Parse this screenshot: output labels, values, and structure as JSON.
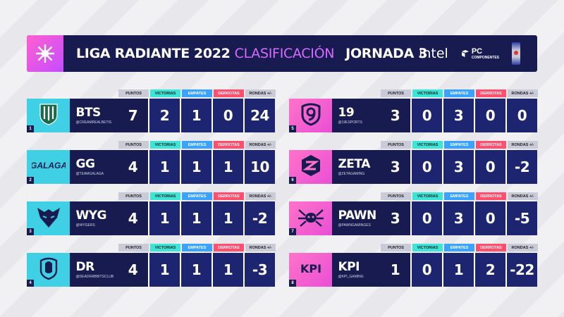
{
  "header": {
    "title_main": "LIGA RADIANTE",
    "year": "2022",
    "subtitle": "CLASIFICACIÓN",
    "jornada": "JORNADA 3",
    "sponsors": {
      "intel": "intel",
      "pc": "PC",
      "pc_sub": "COMPONENTES"
    }
  },
  "columns": {
    "puntos": "PUNTOS",
    "victorias": "VICTORIAS",
    "empates": "EMPATES",
    "derrotas": "DERROTAS",
    "rondas": "RONDAS +/-"
  },
  "teams": [
    {
      "rank": "1",
      "name": "BTS",
      "handle": "@CREAMREALBETIS",
      "puntos": "7",
      "victorias": "2",
      "empates": "1",
      "derrotas": "0",
      "rondas": "24",
      "logo": "real-betis-shield-icon"
    },
    {
      "rank": "2",
      "name": "GG",
      "handle": "@TEAMGALAGA",
      "puntos": "4",
      "victorias": "1",
      "empates": "1",
      "derrotas": "1",
      "rondas": "10",
      "logo": "galaga-logo-icon"
    },
    {
      "rank": "3",
      "name": "WYG",
      "handle": "@WYGERS",
      "puntos": "4",
      "victorias": "1",
      "empates": "1",
      "derrotas": "1",
      "rondas": "-2",
      "logo": "wolf-head-icon"
    },
    {
      "rank": "4",
      "name": "DR",
      "handle": "@DEADRABBITSCLUB",
      "puntos": "4",
      "victorias": "1",
      "empates": "1",
      "derrotas": "1",
      "rondas": "-3",
      "logo": "rabbit-shield-icon"
    },
    {
      "rank": "5",
      "name": "19",
      "handle": "@19ESPORTS",
      "puntos": "3",
      "victorias": "0",
      "empates": "3",
      "derrotas": "0",
      "rondas": "0",
      "logo": "nineteen-shield-icon"
    },
    {
      "rank": "6",
      "name": "ZETA",
      "handle": "@ZETAGAMING",
      "puntos": "3",
      "victorias": "0",
      "empates": "3",
      "derrotas": "0",
      "rondas": "-2",
      "logo": "zeta-hexagon-icon"
    },
    {
      "rank": "7",
      "name": "PAWN",
      "handle": "@PAWNGAMINGES",
      "puntos": "3",
      "victorias": "0",
      "empates": "3",
      "derrotas": "0",
      "rondas": "-5",
      "logo": "spider-icon"
    },
    {
      "rank": "8",
      "name": "KPI",
      "handle": "@KPI_GAMING",
      "puntos": "1",
      "victorias": "0",
      "empates": "1",
      "derrotas": "2",
      "rondas": "-22",
      "logo": "kpi-wordmark-icon"
    }
  ],
  "colors": {
    "navy": "#171b4f",
    "cyan": "#3fd0e6",
    "pink": "#e94fd6",
    "victorias": "#39e6d8",
    "empates": "#3aa3ff",
    "derrotas": "#ff4f6e"
  }
}
